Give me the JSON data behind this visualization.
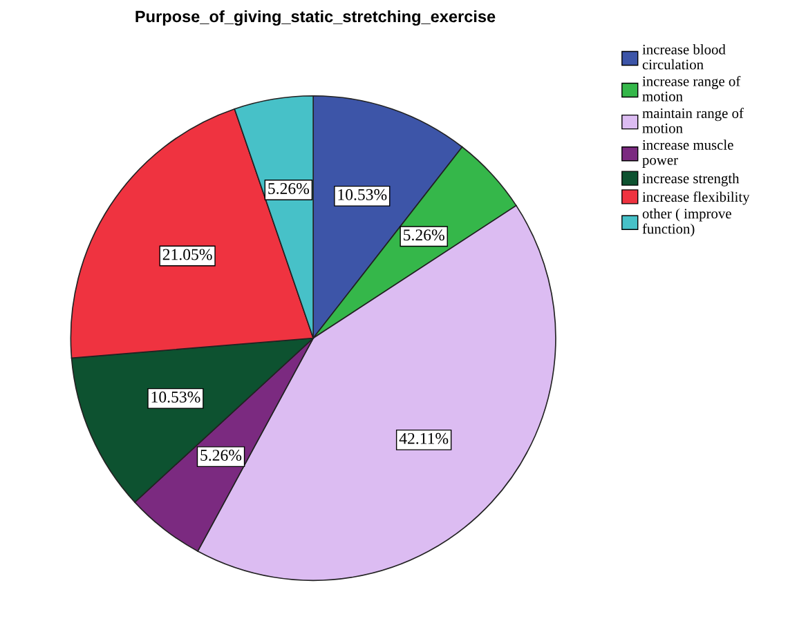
{
  "chart_data": {
    "type": "pie",
    "title": "Purpose_of_giving_static_stretching_exercise",
    "categories": [
      "increase blood circulation",
      "increase range of motion",
      "maintain range of motion",
      "increase muscle power",
      "increase strength",
      "increase flexibility",
      "other ( improve function)"
    ],
    "values": [
      10.53,
      5.26,
      42.11,
      5.26,
      10.53,
      21.05,
      5.26
    ],
    "colors": [
      "#3d55a8",
      "#35b74a",
      "#dcbcf2",
      "#7b2a80",
      "#0d5230",
      "#ef3340",
      "#47c1c8"
    ],
    "value_labels": [
      "10.53%",
      "5.26%",
      "42.11%",
      "5.26%",
      "10.53%",
      "21.05%",
      "5.26%"
    ],
    "legend": "top right"
  }
}
